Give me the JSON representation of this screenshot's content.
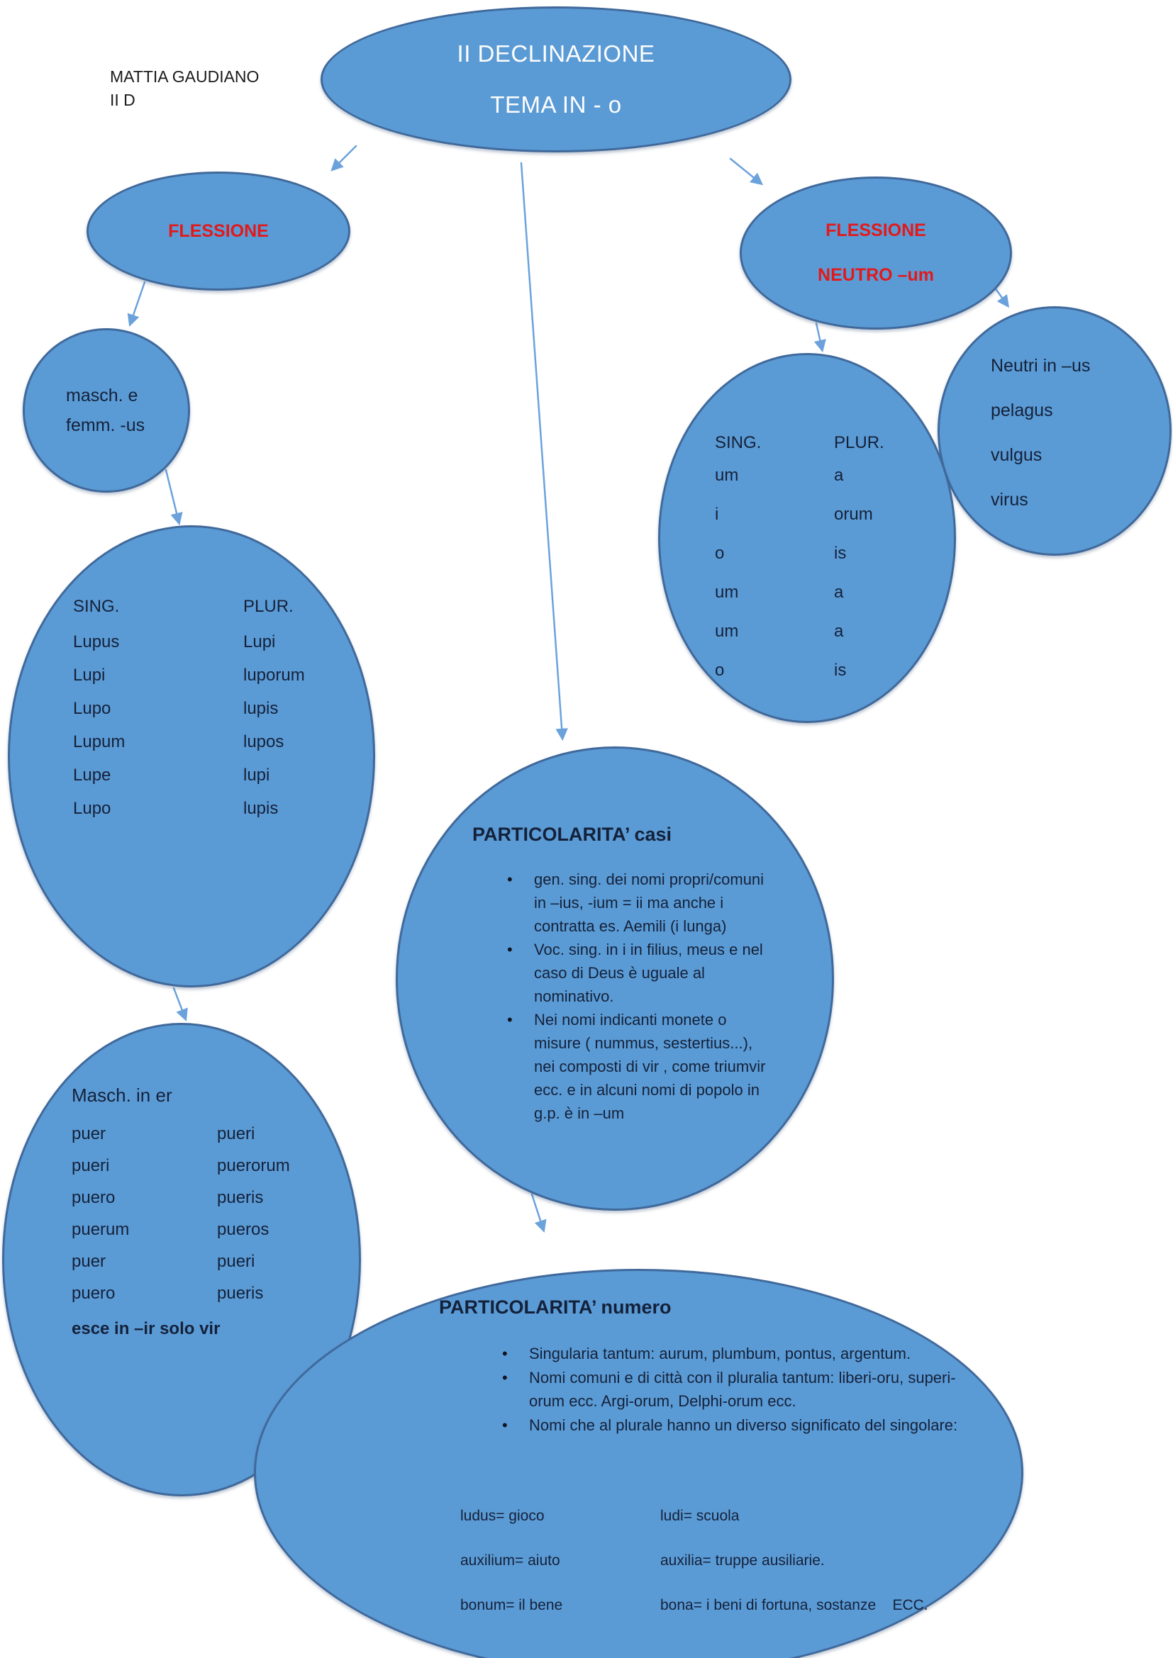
{
  "colors": {
    "node_fill": "#5b9bd5",
    "node_border": "#40699b",
    "arrow": "#6ba2dc",
    "accent_red": "#e2191b",
    "body_text": "#14213a",
    "title_text": "#fdfdfd"
  },
  "author": {
    "name": "MATTIA GAUDIANO",
    "class": "II D"
  },
  "root_node": {
    "line1": "II DECLINAZIONE",
    "line2": "TEMA IN - o"
  },
  "flessione_node": {
    "label": "FLESSIONE"
  },
  "flessione_neutro_node": {
    "line1": "FLESSIONE",
    "line2": "NEUTRO –um"
  },
  "masch_femm_node": {
    "line1": "masch. e",
    "line2": "femm. -us"
  },
  "neutri_us_node": {
    "title": "Neutri in –us",
    "items": [
      "pelagus",
      "vulgus",
      "virus"
    ]
  },
  "neutro_table_node": {
    "header": {
      "sing": "SING.",
      "plur": "PLUR."
    },
    "rows": [
      [
        "um",
        "a"
      ],
      [
        "i",
        "orum"
      ],
      [
        "o",
        "is"
      ],
      [
        "um",
        "a"
      ],
      [
        "um",
        "a"
      ],
      [
        "o",
        "is"
      ]
    ]
  },
  "lupus_table_node": {
    "header": {
      "sing": "SING.",
      "plur": "PLUR."
    },
    "rows": [
      [
        "Lupus",
        "Lupi"
      ],
      [
        "Lupi",
        "luporum"
      ],
      [
        "Lupo",
        "lupis"
      ],
      [
        "Lupum",
        "lupos"
      ],
      [
        "Lupe",
        "lupi"
      ],
      [
        "Lupo",
        "lupis"
      ]
    ]
  },
  "masch_er_node": {
    "title": "Masch. in er",
    "rows": [
      [
        "puer",
        "pueri"
      ],
      [
        "pueri",
        "puerorum"
      ],
      [
        "puero",
        "pueris"
      ],
      [
        "puerum",
        "pueros"
      ],
      [
        "puer",
        "pueri"
      ],
      [
        "puero",
        "pueris"
      ]
    ],
    "footnote": "esce in –ir solo vir"
  },
  "particolarita_casi_node": {
    "title": "PARTICOLARITA’ casi",
    "bullets": [
      "gen. sing. dei nomi propri/comuni in –ius, -ium = ii ma anche i contratta es. Aemili (i lunga)",
      "Voc. sing. in i in filius, meus e nel caso di Deus è uguale al nominativo.",
      "Nei nomi indicanti monete o misure ( nummus, sestertius...), nei composti di vir , come triumvir ecc. e in alcuni nomi di popolo in g.p. è in –um"
    ]
  },
  "particolarita_numero_node": {
    "title": "PARTICOLARITA’ numero",
    "bullets": [
      "Singularia tantum: aurum, plumbum, pontus, argentum.",
      "Nomi comuni e di città con il pluralia tantum: liberi-oru, superi-orum ecc.  Argi-orum, Delphi-orum ecc.",
      "Nomi che al plurale hanno un diverso significato del singolare:"
    ],
    "pairs": [
      [
        "ludus= gioco",
        "ludi= scuola"
      ],
      [
        "auxilium= aiuto",
        "auxilia= truppe ausiliarie."
      ],
      [
        "bonum= il bene",
        "bona= i beni di fortuna, sostanze    ECC."
      ]
    ]
  }
}
